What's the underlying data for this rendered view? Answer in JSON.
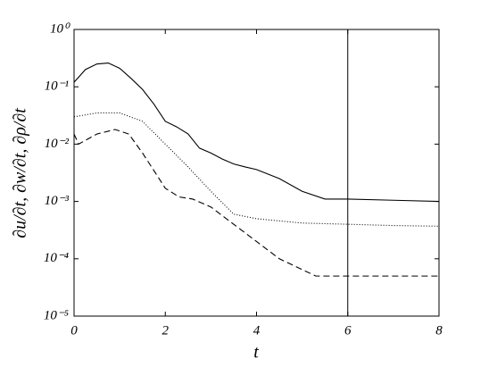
{
  "chart_data": {
    "type": "line",
    "xlabel": "t",
    "ylabel": "∂u/∂t, ∂w/∂t, ∂ρ/∂t",
    "xlim": [
      0,
      8
    ],
    "xticks": [
      0,
      2,
      4,
      6,
      8
    ],
    "ylim": [
      1e-05,
      1
    ],
    "ylog": true,
    "yticks": [
      {
        "value": 1e-05,
        "label": "10⁻⁵"
      },
      {
        "value": 0.0001,
        "label": "10⁻⁴"
      },
      {
        "value": 0.001,
        "label": "10⁻³"
      },
      {
        "value": 0.01,
        "label": "10⁻²"
      },
      {
        "value": 0.1,
        "label": "10⁻¹"
      },
      {
        "value": 1,
        "label": "10⁰"
      }
    ],
    "vlines": [
      6
    ],
    "series": [
      {
        "color": "#000000",
        "dash": "solid",
        "x": [
          0,
          0.25,
          0.5,
          0.75,
          1.0,
          1.25,
          1.5,
          1.75,
          2.0,
          2.25,
          2.5,
          2.75,
          3.0,
          3.25,
          3.5,
          3.75,
          4.0,
          4.5,
          5.0,
          5.5,
          6.0,
          7.0,
          8.0
        ],
        "values": [
          0.12,
          0.2,
          0.25,
          0.26,
          0.21,
          0.14,
          0.09,
          0.05,
          0.025,
          0.02,
          0.015,
          0.0085,
          0.007,
          0.0055,
          0.0045,
          0.004,
          0.0036,
          0.0025,
          0.0015,
          0.0011,
          0.0011,
          0.00105,
          0.001
        ]
      },
      {
        "color": "#000000",
        "dash": "dotted",
        "x": [
          0,
          0.5,
          1.0,
          1.5,
          2.0,
          2.5,
          3.0,
          3.5,
          4.0,
          5.0,
          6.0,
          7.0,
          8.0
        ],
        "values": [
          0.03,
          0.035,
          0.035,
          0.025,
          0.01,
          0.004,
          0.0015,
          0.0006,
          0.0005,
          0.00042,
          0.0004,
          0.00038,
          0.00037
        ]
      },
      {
        "color": "#000000",
        "dash": "dashed",
        "x": [
          0,
          0.1,
          0.5,
          0.9,
          1.2,
          1.5,
          1.8,
          2.0,
          2.3,
          2.6,
          3.0,
          3.5,
          4.0,
          4.5,
          5.3,
          8.0
        ],
        "values": [
          0.015,
          0.01,
          0.015,
          0.018,
          0.015,
          0.007,
          0.003,
          0.0017,
          0.0012,
          0.0011,
          0.0008,
          0.0004,
          0.0002,
          0.0001,
          5e-05,
          5e-05
        ]
      }
    ]
  }
}
